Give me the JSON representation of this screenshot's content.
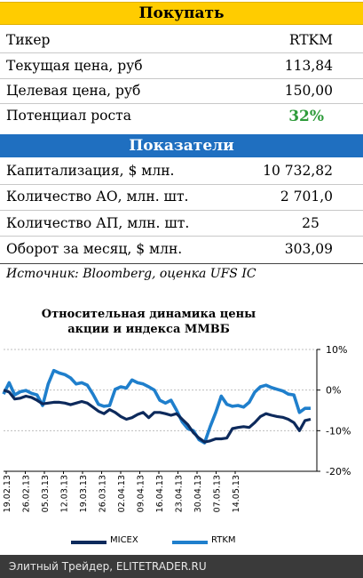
{
  "buy_header": "Покупать",
  "buy_rows": [
    {
      "label": "Тикер",
      "value": "RTKM"
    },
    {
      "label": "Текущая цена, руб",
      "value": "113,84"
    },
    {
      "label": "Целевая цена, руб",
      "value": "150,00"
    },
    {
      "label": "Потенциал роста",
      "value": "32%"
    }
  ],
  "potential_color": "#2e9b3a",
  "indicators_header": "Показатели",
  "indicator_rows": [
    {
      "label": "Капитализация, $ млн.",
      "value": "10 732,82"
    },
    {
      "label": "Количество АО, млн. шт.",
      "value": "2 701,0"
    },
    {
      "label": "Количество АП, млн. шт.",
      "value": "25"
    },
    {
      "label": "Оборот за месяц, $ млн.",
      "value": "303,09"
    }
  ],
  "source": "Источник: Bloomberg, оценка UFS IC",
  "footer": "Элитный Трейдер, ELITETRADER.RU",
  "colors": {
    "yellow_band": "#ffcc00",
    "blue_band": "#1f6fc0",
    "micex": "#0d2a5c",
    "rtkm": "#1f7fcc"
  },
  "chart_data": {
    "type": "line",
    "title_lines": [
      "Относительная динамика цены",
      "акции и индекса ММВБ"
    ],
    "y_ticks": [
      "10%",
      "0%",
      "-10%",
      "-20%"
    ],
    "ylim": [
      -20,
      10
    ],
    "x_ticks": [
      "19.02.13",
      "26.02.13",
      "05.03.13",
      "12.03.13",
      "19.03.13",
      "26.03.13",
      "02.04.13",
      "09.04.13",
      "16.04.13",
      "23.04.13",
      "30.04.13",
      "07.05.13",
      "14.05.13"
    ],
    "legend_position": "bottom",
    "series": [
      {
        "name": "MICEX",
        "values": [
          0,
          -0.5,
          -2.2,
          -2.0,
          -1.5,
          -1.8,
          -2.5,
          -3.4,
          -3.2,
          -3.0,
          -3.0,
          -3.2,
          -3.6,
          -3.2,
          -2.8,
          -3.2,
          -4.2,
          -5.2,
          -5.8,
          -4.8,
          -5.5,
          -6.5,
          -7.2,
          -6.8,
          -6.0,
          -5.5,
          -6.8,
          -5.5,
          -5.5,
          -5.8,
          -6.2,
          -5.8,
          -7.2,
          -8.5,
          -10.5,
          -11.8,
          -12.8,
          -12.5,
          -12.0,
          -12.0,
          -11.8,
          -9.5,
          -9.2,
          -9.0,
          -9.2,
          -8.0,
          -6.5,
          -5.8,
          -6.2,
          -6.5,
          -6.7,
          -7.2,
          -8.0,
          -10.0,
          -7.5,
          -7.2
        ]
      },
      {
        "name": "RTKM",
        "values": [
          -1.0,
          1.8,
          -1.2,
          -0.4,
          -0.1,
          -0.8,
          -1.2,
          -3.8,
          1.5,
          4.8,
          4.2,
          3.8,
          3.0,
          1.5,
          1.8,
          1.2,
          -1.0,
          -3.5,
          -4.0,
          -3.8,
          0.2,
          0.8,
          0.5,
          2.5,
          1.8,
          1.5,
          0.8,
          0.0,
          -2.5,
          -3.2,
          -2.5,
          -5.0,
          -7.8,
          -9.5,
          -10.0,
          -12.2,
          -13.0,
          -9.0,
          -5.5,
          -1.5,
          -3.5,
          -4.0,
          -3.8,
          -4.2,
          -3.0,
          -0.5,
          0.8,
          1.2,
          0.6,
          0.2,
          -0.2,
          -1.0,
          -1.2,
          -5.5,
          -4.5,
          -4.5
        ]
      }
    ]
  }
}
